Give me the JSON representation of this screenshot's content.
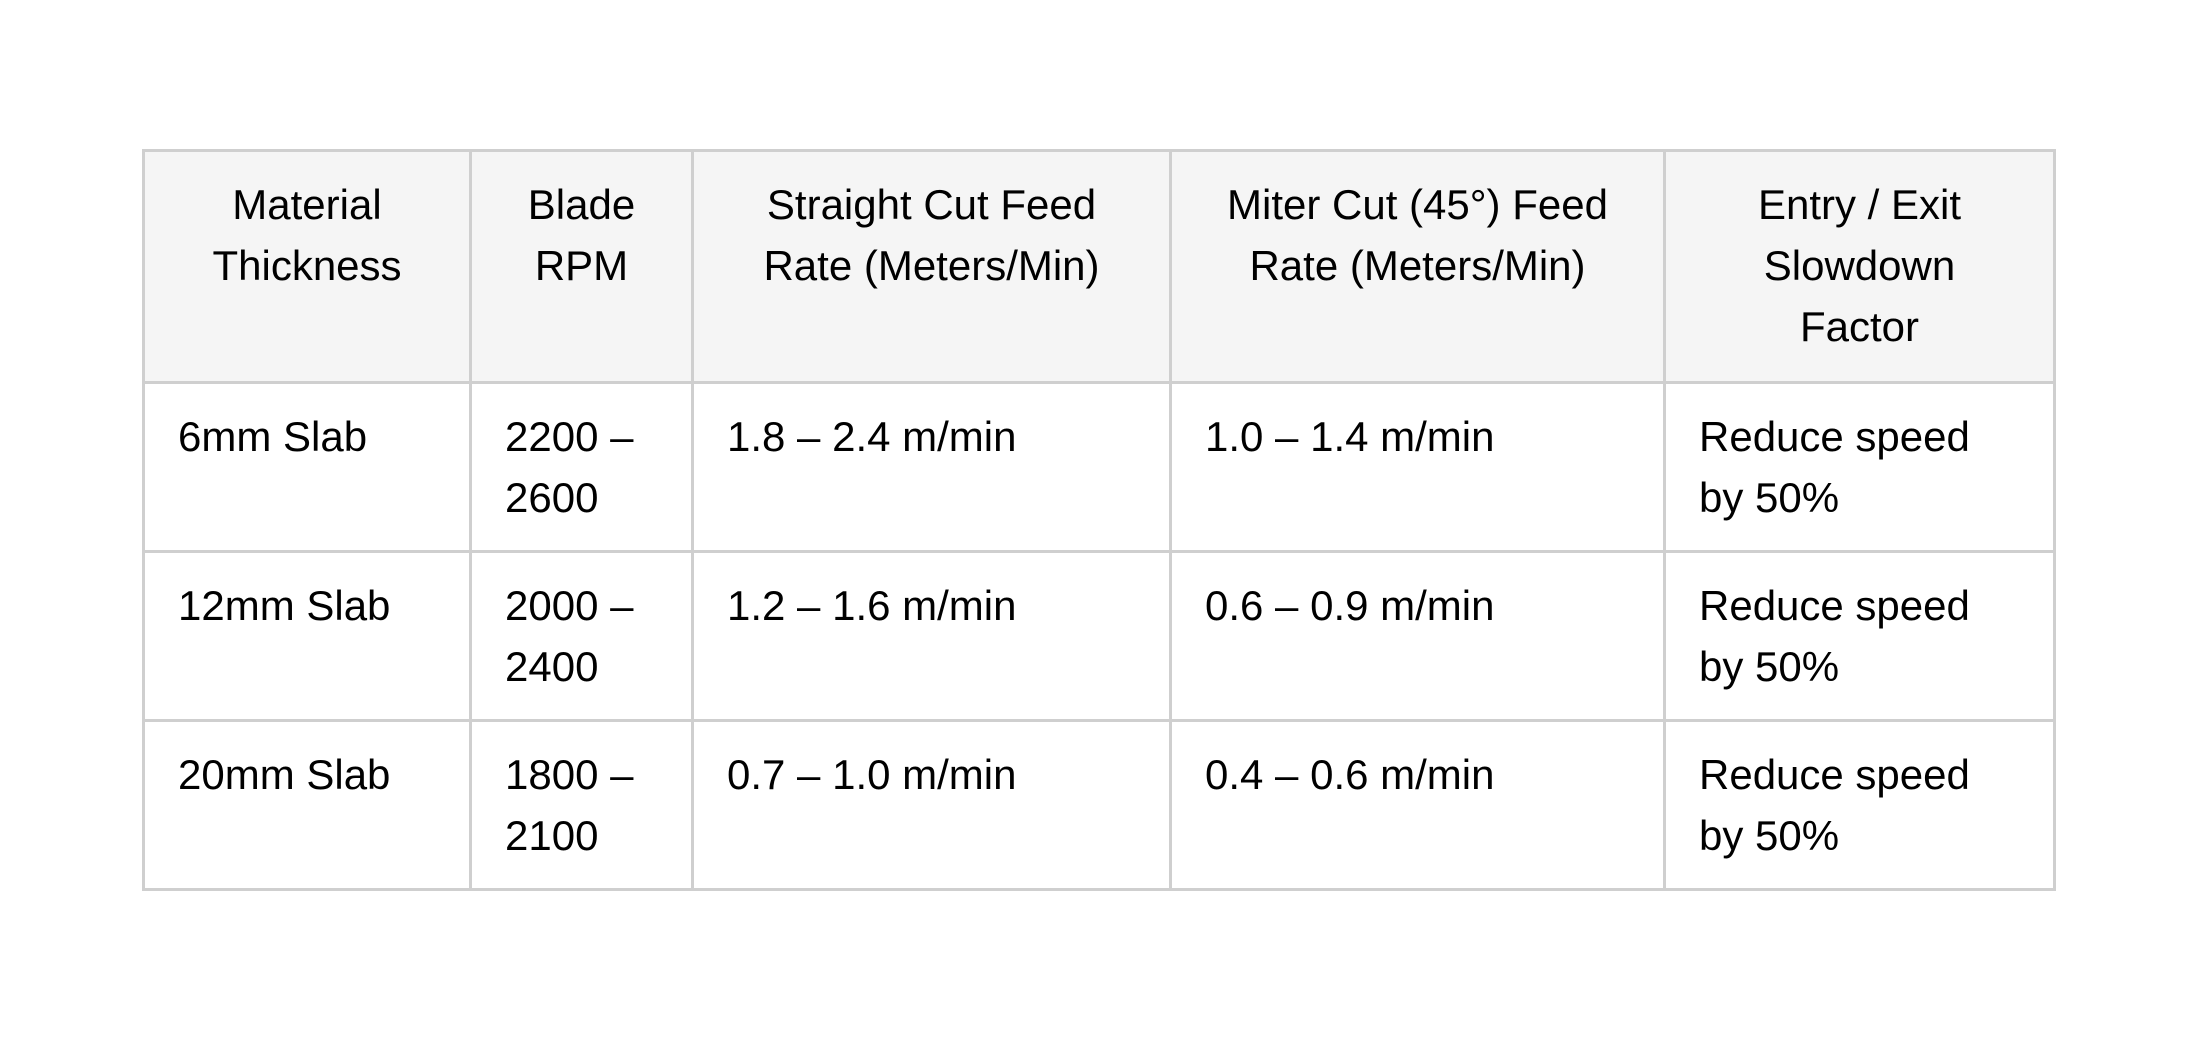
{
  "table": {
    "headers": [
      "Material Thickness",
      "Blade RPM",
      "Straight Cut Feed Rate (Meters/Min)",
      "Miter Cut (45°) Feed Rate (Meters/Min)",
      "Entry / Exit Slowdown Factor"
    ],
    "rows": [
      [
        "6mm Slab",
        "2200 – 2600",
        "1.8 – 2.4 m/min",
        "1.0 – 1.4 m/min",
        "Reduce speed by 50%"
      ],
      [
        "12mm Slab",
        "2000 – 2400",
        "1.2 – 1.6 m/min",
        "0.6 – 0.9 m/min",
        "Reduce speed by 50%"
      ],
      [
        "20mm Slab",
        "1800 – 2100",
        "0.7 – 1.0 m/min",
        "0.4 – 0.6 m/min",
        "Reduce speed by 50%"
      ]
    ]
  }
}
